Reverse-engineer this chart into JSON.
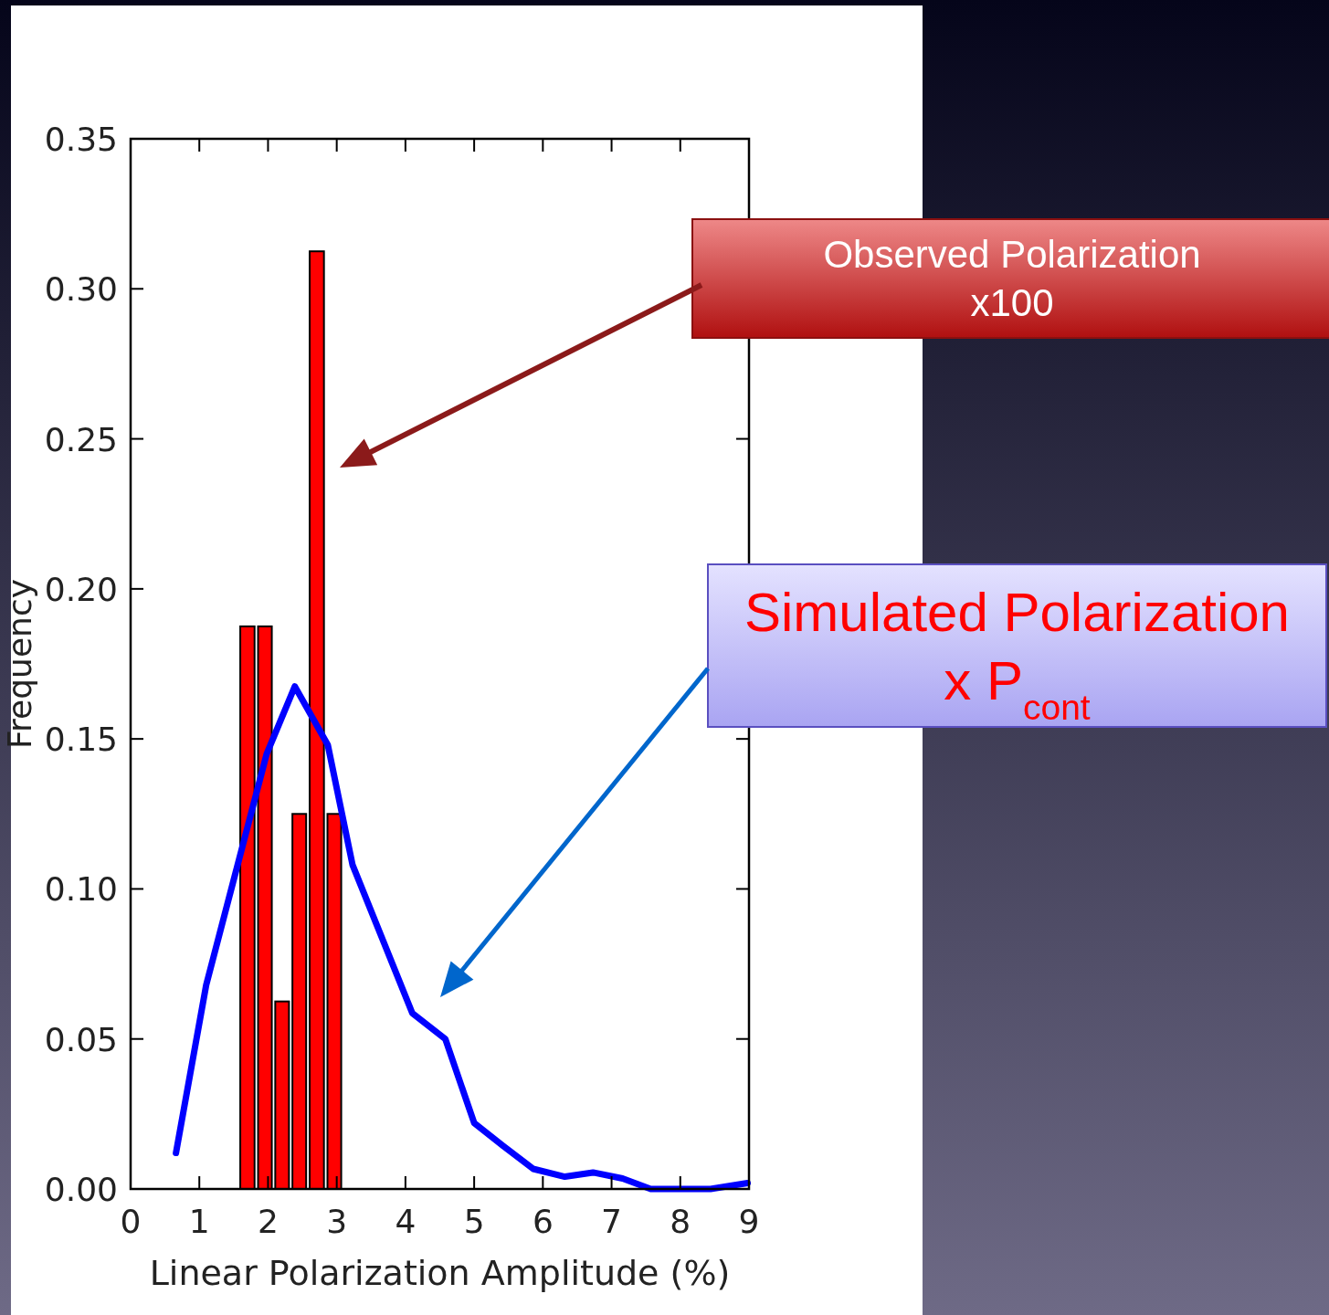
{
  "chart_data": {
    "type": "histogram",
    "xlabel": "Linear Polarization Amplitude (%)",
    "ylabel": "Frequency",
    "xlim": [
      0,
      9
    ],
    "xticks": [
      0,
      1,
      2,
      3,
      4,
      5,
      6,
      7,
      8,
      9
    ],
    "ylim": [
      0,
      0.35
    ],
    "yticks": [
      {
        "value": 0,
        "label": "0.00"
      },
      {
        "value": 0.05,
        "label": "0.05"
      },
      {
        "value": 0.1,
        "label": "0.10"
      },
      {
        "value": 0.15,
        "label": "0.15"
      },
      {
        "value": 0.2,
        "label": "0.20"
      },
      {
        "value": 0.25,
        "label": "0.25"
      },
      {
        "value": 0.3,
        "label": "0.30"
      },
      {
        "value": 0.35,
        "label": "0.35"
      }
    ],
    "grid": false,
    "series": [
      {
        "color": "#ff0000",
        "bins": [
          1.57,
          1.83,
          2.08,
          2.33,
          2.58,
          2.84,
          3.09
        ],
        "values": [
          0.1875,
          0.1875,
          0.0625,
          0.125,
          0.3125,
          0.125
        ]
      },
      {
        "type": "line",
        "color": "#0000ff",
        "x": [
          0.66,
          1.1,
          1.98,
          2.39,
          2.87,
          3.23,
          4.1,
          4.58,
          5.0,
          5.42,
          5.86,
          6.32,
          6.73,
          7.16,
          7.57,
          8.44,
          8.98
        ],
        "values": [
          0.012,
          0.068,
          0.145,
          0.1675,
          0.148,
          0.108,
          0.0586,
          0.05,
          0.022,
          0.0144,
          0.0067,
          0.0041,
          0.0055,
          0.0035,
          0.0,
          0.0,
          0.002
        ]
      }
    ],
    "annotations": [
      "Observed Polarization\nx100",
      "Simulated Polarization\nx P$_{cont}$"
    ]
  }
}
